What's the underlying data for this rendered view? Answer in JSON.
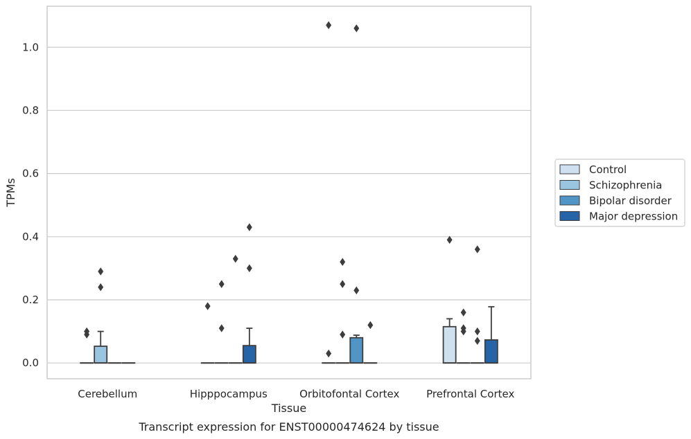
{
  "chart_data": {
    "type": "box",
    "xlabel": "Tissue",
    "ylabel": "TPMs",
    "caption": "Transcript expression for ENST00000474624 by tissue",
    "ylim": [
      -0.05,
      1.13
    ],
    "yticks": [
      0.0,
      0.2,
      0.4,
      0.6,
      0.8,
      1.0
    ],
    "ytick_labels": [
      "0.0",
      "0.2",
      "0.4",
      "0.6",
      "0.8",
      "1.0"
    ],
    "categories": [
      "Cerebellum",
      "Hipppocampus",
      "Orbitofontal Cortex",
      "Prefrontal Cortex"
    ],
    "grid": "horizontal",
    "legend_position": "right",
    "series": [
      {
        "name": "Control",
        "color": "#cfe1f0",
        "boxes": [
          {
            "q1": 0,
            "median": 0,
            "q3": 0,
            "whisker_low": 0,
            "whisker_high": 0,
            "outliers": [
              0.09,
              0.1
            ]
          },
          {
            "q1": 0,
            "median": 0,
            "q3": 0,
            "whisker_low": 0,
            "whisker_high": 0,
            "outliers": [
              0.18
            ]
          },
          {
            "q1": 0,
            "median": 0,
            "q3": 0,
            "whisker_low": 0,
            "whisker_high": 0,
            "outliers": [
              0.03,
              1.07
            ]
          },
          {
            "q1": 0,
            "median": 0,
            "q3": 0.115,
            "whisker_low": 0,
            "whisker_high": 0.14,
            "outliers": [
              0.39
            ]
          }
        ]
      },
      {
        "name": "Schizophrenia",
        "color": "#9ac5e0",
        "boxes": [
          {
            "q1": 0,
            "median": 0,
            "q3": 0.053,
            "whisker_low": 0,
            "whisker_high": 0.1,
            "outliers": [
              0.24,
              0.29
            ]
          },
          {
            "q1": 0,
            "median": 0,
            "q3": 0,
            "whisker_low": 0,
            "whisker_high": 0,
            "outliers": [
              0.11,
              0.25
            ]
          },
          {
            "q1": 0,
            "median": 0,
            "q3": 0,
            "whisker_low": 0,
            "whisker_high": 0,
            "outliers": [
              0.09,
              0.25,
              0.32
            ]
          },
          {
            "q1": 0,
            "median": 0,
            "q3": 0,
            "whisker_low": 0,
            "whisker_high": 0,
            "outliers": [
              0.1,
              0.11,
              0.16
            ]
          }
        ]
      },
      {
        "name": "Bipolar disorder",
        "color": "#5195c6",
        "boxes": [
          {
            "q1": 0,
            "median": 0,
            "q3": 0,
            "whisker_low": 0,
            "whisker_high": 0,
            "outliers": []
          },
          {
            "q1": 0,
            "median": 0,
            "q3": 0,
            "whisker_low": 0,
            "whisker_high": 0,
            "outliers": [
              0.33
            ]
          },
          {
            "q1": 0,
            "median": 0,
            "q3": 0.08,
            "whisker_low": 0,
            "whisker_high": 0.088,
            "outliers": [
              0.23,
              1.06
            ]
          },
          {
            "q1": 0,
            "median": 0,
            "q3": 0,
            "whisker_low": 0,
            "whisker_high": 0,
            "outliers": [
              0.07,
              0.1,
              0.36
            ]
          }
        ]
      },
      {
        "name": "Major depression",
        "color": "#2564a7",
        "boxes": [
          {
            "q1": 0,
            "median": 0,
            "q3": 0,
            "whisker_low": 0,
            "whisker_high": 0,
            "outliers": []
          },
          {
            "q1": 0,
            "median": 0,
            "q3": 0.055,
            "whisker_low": 0,
            "whisker_high": 0.11,
            "outliers": [
              0.3,
              0.43
            ]
          },
          {
            "q1": 0,
            "median": 0,
            "q3": 0,
            "whisker_low": 0,
            "whisker_high": 0,
            "outliers": [
              0.12
            ]
          },
          {
            "q1": 0,
            "median": 0,
            "q3": 0.073,
            "whisker_low": 0,
            "whisker_high": 0.178,
            "outliers": []
          }
        ]
      }
    ]
  }
}
